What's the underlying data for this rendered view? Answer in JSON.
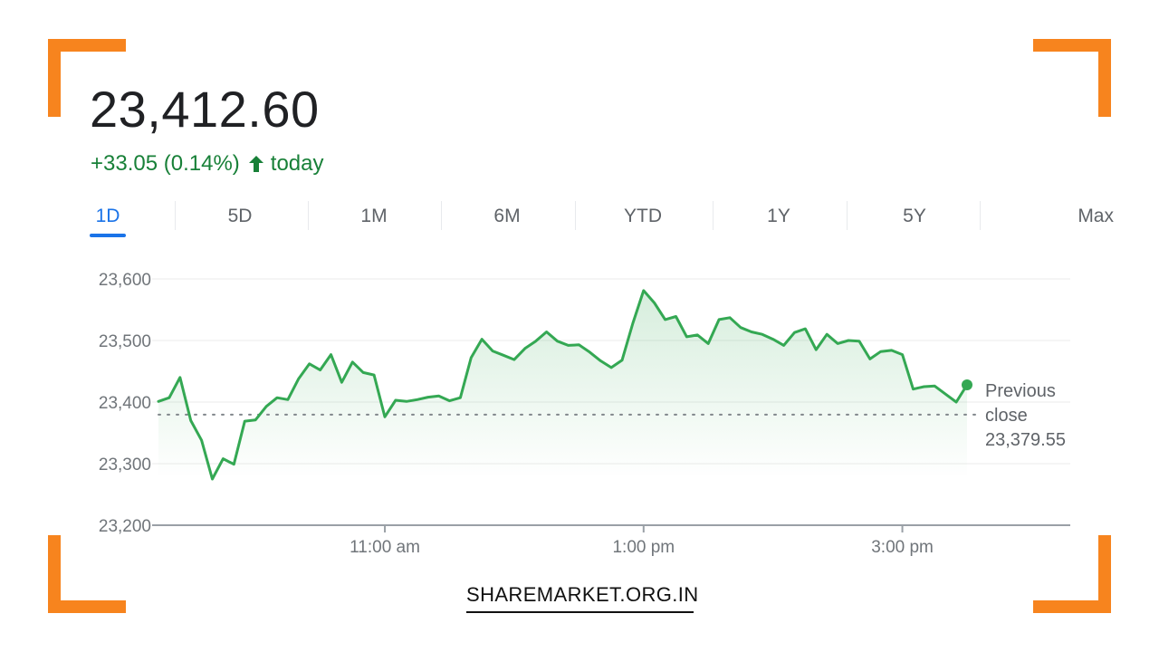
{
  "quote": {
    "price": "23,412.60",
    "change_text": "+33.05 (0.14%)",
    "direction_icon": "arrow-up-icon",
    "period_label": "today"
  },
  "tabs": [
    {
      "label": "1D",
      "active": true
    },
    {
      "label": "5D",
      "active": false
    },
    {
      "label": "1M",
      "active": false
    },
    {
      "label": "6M",
      "active": false
    },
    {
      "label": "YTD",
      "active": false
    },
    {
      "label": "1Y",
      "active": false
    },
    {
      "label": "5Y",
      "active": false
    },
    {
      "label": "Max",
      "active": false
    }
  ],
  "colors": {
    "line": "#34a853",
    "positive_text": "#188038",
    "accent_tab": "#1a73e8",
    "frame": "#f7841e"
  },
  "brand": {
    "text": "SHAREMARKET.ORG.IN"
  },
  "chart_data": {
    "type": "line",
    "title": "",
    "xlabel": "",
    "ylabel": "",
    "ylim": [
      23200,
      23600
    ],
    "y_ticks": [
      23600,
      23500,
      23400,
      23300,
      23200
    ],
    "y_tick_labels": [
      "23,600",
      "23,500",
      "23,400",
      "23,300",
      "23,200"
    ],
    "x_ticks": [
      "11:00",
      "13:00",
      "15:00"
    ],
    "x_tick_labels": [
      "11:00 am",
      "1:00 pm",
      "3:00 pm"
    ],
    "grid": true,
    "previous_close": {
      "value": 23379.55,
      "label_lines": [
        "Previous",
        "close"
      ],
      "value_text": "23,379.55"
    },
    "series": [
      {
        "points": [
          [
            "09:15",
            23401
          ],
          [
            "09:20",
            23407
          ],
          [
            "09:25",
            23440
          ],
          [
            "09:30",
            23370
          ],
          [
            "09:35",
            23338
          ],
          [
            "09:40",
            23275
          ],
          [
            "09:45",
            23308
          ],
          [
            "09:50",
            23299
          ],
          [
            "09:55",
            23369
          ],
          [
            "10:00",
            23371
          ],
          [
            "10:05",
            23393
          ],
          [
            "10:10",
            23407
          ],
          [
            "10:15",
            23404
          ],
          [
            "10:20",
            23438
          ],
          [
            "10:25",
            23462
          ],
          [
            "10:30",
            23452
          ],
          [
            "10:35",
            23477
          ],
          [
            "10:40",
            23432
          ],
          [
            "10:45",
            23465
          ],
          [
            "10:50",
            23448
          ],
          [
            "10:55",
            23444
          ],
          [
            "11:00",
            23376
          ],
          [
            "11:05",
            23403
          ],
          [
            "11:10",
            23401
          ],
          [
            "11:15",
            23404
          ],
          [
            "11:20",
            23408
          ],
          [
            "11:25",
            23410
          ],
          [
            "11:30",
            23402
          ],
          [
            "11:35",
            23407
          ],
          [
            "11:40",
            23472
          ],
          [
            "11:45",
            23502
          ],
          [
            "11:50",
            23483
          ],
          [
            "11:55",
            23476
          ],
          [
            "12:00",
            23469
          ],
          [
            "12:05",
            23487
          ],
          [
            "12:10",
            23499
          ],
          [
            "12:15",
            23514
          ],
          [
            "12:20",
            23499
          ],
          [
            "12:25",
            23492
          ],
          [
            "12:30",
            23493
          ],
          [
            "12:35",
            23481
          ],
          [
            "12:40",
            23467
          ],
          [
            "12:45",
            23456
          ],
          [
            "12:50",
            23468
          ],
          [
            "12:55",
            23528
          ],
          [
            "13:00",
            23581
          ],
          [
            "13:05",
            23561
          ],
          [
            "13:10",
            23534
          ],
          [
            "13:15",
            23539
          ],
          [
            "13:20",
            23506
          ],
          [
            "13:25",
            23509
          ],
          [
            "13:30",
            23495
          ],
          [
            "13:35",
            23534
          ],
          [
            "13:40",
            23537
          ],
          [
            "13:45",
            23521
          ],
          [
            "13:50",
            23514
          ],
          [
            "13:55",
            23510
          ],
          [
            "14:00",
            23502
          ],
          [
            "14:05",
            23492
          ],
          [
            "14:10",
            23513
          ],
          [
            "14:15",
            23519
          ],
          [
            "14:20",
            23485
          ],
          [
            "14:25",
            23510
          ],
          [
            "14:30",
            23495
          ],
          [
            "14:35",
            23500
          ],
          [
            "14:40",
            23499
          ],
          [
            "14:45",
            23470
          ],
          [
            "14:50",
            23482
          ],
          [
            "14:55",
            23484
          ],
          [
            "15:00",
            23477
          ],
          [
            "15:05",
            23421
          ],
          [
            "15:10",
            23425
          ],
          [
            "15:15",
            23426
          ],
          [
            "15:20",
            23413
          ],
          [
            "15:25",
            23400
          ],
          [
            "15:30",
            23428
          ]
        ]
      }
    ]
  }
}
